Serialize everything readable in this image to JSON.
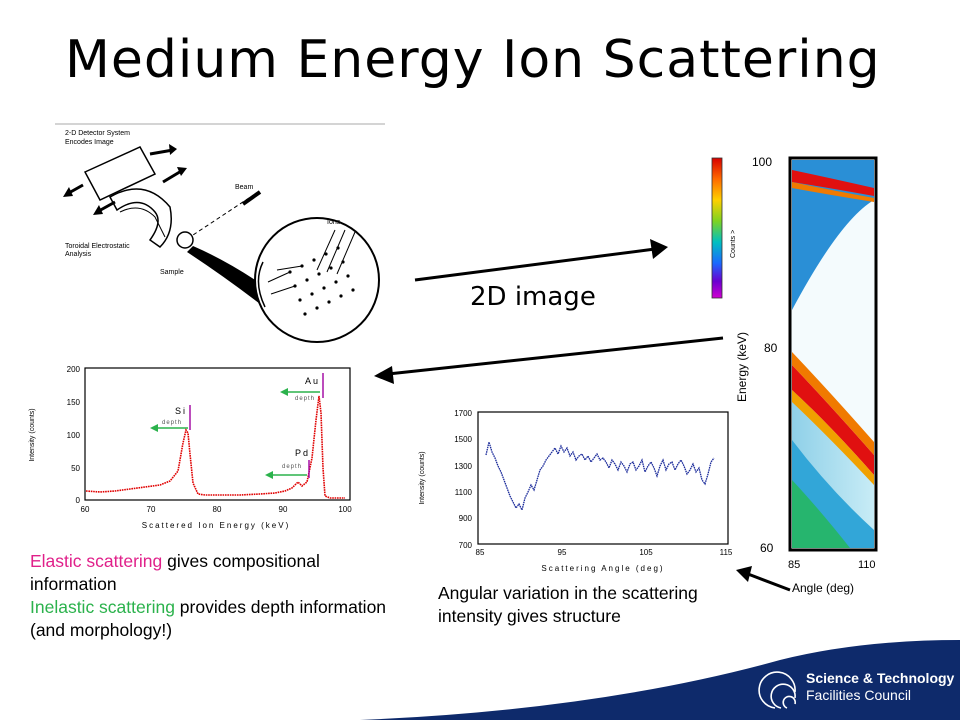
{
  "title": "Medium Energy Ion Scattering",
  "arrow_label": "2D image",
  "detector_diagram": {
    "labels": [
      "2-D Detector System",
      "Encodes Image",
      "Beam",
      "Toroidal Electrostatic",
      "Analysis",
      "Sample",
      "Ions"
    ]
  },
  "image_2d": {
    "colorbar_label": "Counts >",
    "y_axis_label": "Energy (keV)",
    "x_axis_label": "Angle (deg)",
    "y_ticks": [
      "100",
      "80",
      "60"
    ],
    "x_ticks": [
      "85",
      "110"
    ]
  },
  "energy_spectrum": {
    "ylabel": "Intensity (counts)",
    "xlabel": "Scattered Ion Energy (keV)",
    "y_ticks": [
      "200",
      "150",
      "100",
      "50",
      "0"
    ],
    "x_ticks": [
      "60",
      "70",
      "80",
      "90",
      "100"
    ],
    "peak_labels": {
      "si": "Si",
      "pd": "Pd",
      "au": "Au"
    },
    "depth_label": "depth"
  },
  "angular_plot": {
    "ylabel": "Intensity (counts)",
    "xlabel": "Scattering Angle (deg)",
    "y_ticks": [
      "1700",
      "1500",
      "1300",
      "1100",
      "900",
      "700"
    ],
    "x_ticks": [
      "85",
      "95",
      "105",
      "115"
    ]
  },
  "caption_left": {
    "elastic": "Elastic scattering",
    "elastic_rest": " gives compositional information",
    "inelastic": "Inelastic scattering",
    "inelastic_rest": " provides depth information (and morphology!)"
  },
  "caption_middle": "Angular variation in the scattering intensity gives structure",
  "logo": {
    "line1": "Science & Technology",
    "line2": "Facilities Council"
  },
  "colors": {
    "elastic": "#e0208a",
    "inelastic": "#2bb24c",
    "footer": "#0e2a6b",
    "spectrum": "#e00000",
    "angular": "#1a2a9a"
  }
}
